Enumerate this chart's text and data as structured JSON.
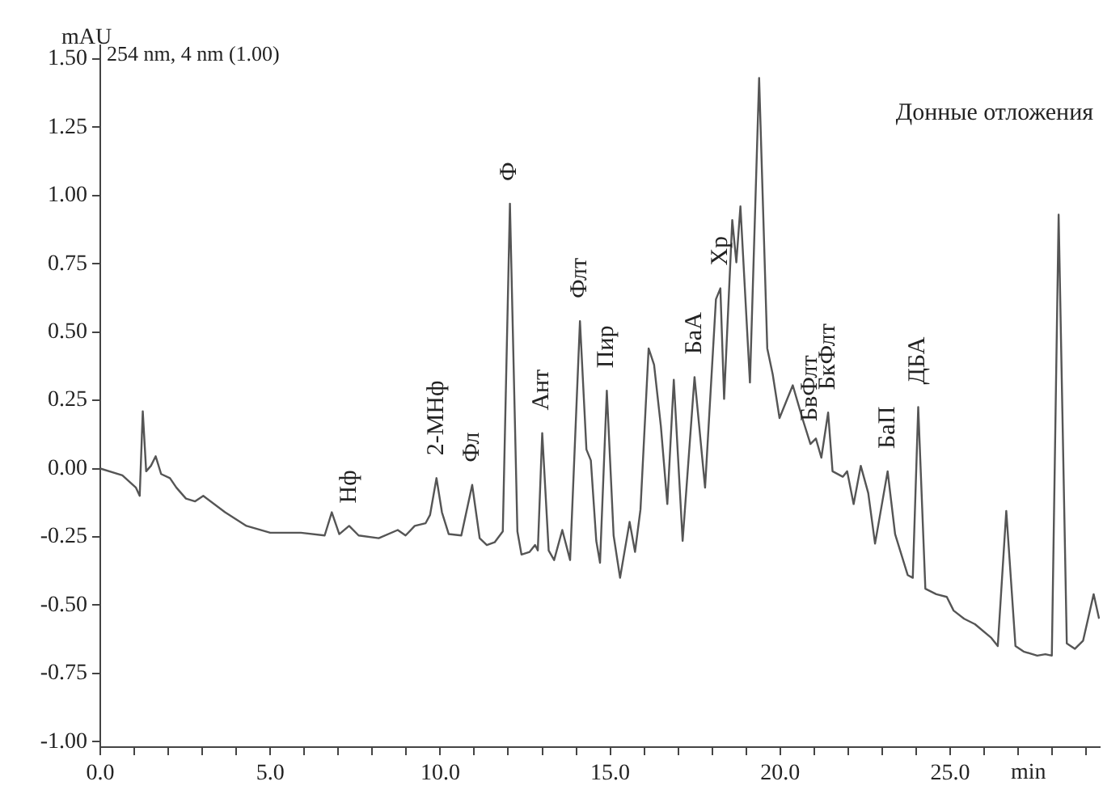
{
  "chart_data": {
    "type": "line",
    "xlabel": "min",
    "ylabel": "mAU",
    "grid": false,
    "legend": false,
    "marker": "none",
    "line_style": "solid",
    "xlim": [
      0,
      29.4
    ],
    "ylim": [
      -1.02,
      1.55
    ],
    "xticks": [
      {
        "value": 0,
        "label": "0.0"
      },
      {
        "value": 1,
        "label": null
      },
      {
        "value": 2,
        "label": null
      },
      {
        "value": 3,
        "label": null
      },
      {
        "value": 4,
        "label": null
      },
      {
        "value": 5,
        "label": "5.0"
      },
      {
        "value": 6,
        "label": null
      },
      {
        "value": 7,
        "label": null
      },
      {
        "value": 8,
        "label": null
      },
      {
        "value": 9,
        "label": null
      },
      {
        "value": 10,
        "label": "10.0"
      },
      {
        "value": 11,
        "label": null
      },
      {
        "value": 12,
        "label": null
      },
      {
        "value": 13,
        "label": null
      },
      {
        "value": 14,
        "label": null
      },
      {
        "value": 15,
        "label": "15.0"
      },
      {
        "value": 16,
        "label": null
      },
      {
        "value": 17,
        "label": null
      },
      {
        "value": 18,
        "label": null
      },
      {
        "value": 19,
        "label": null
      },
      {
        "value": 20,
        "label": "20.0"
      },
      {
        "value": 21,
        "label": null
      },
      {
        "value": 22,
        "label": null
      },
      {
        "value": 23,
        "label": null
      },
      {
        "value": 24,
        "label": null
      },
      {
        "value": 25,
        "label": "25.0"
      },
      {
        "value": 26,
        "label": null
      },
      {
        "value": 27,
        "label": null
      },
      {
        "value": 28,
        "label": null
      },
      {
        "value": 29,
        "label": null
      }
    ],
    "yticks": [
      {
        "value": -1,
        "label": "-1.00"
      },
      {
        "value": -0.75,
        "label": "-0.75"
      },
      {
        "value": -0.5,
        "label": "-0.50"
      },
      {
        "value": -0.25,
        "label": "-0.25"
      },
      {
        "value": 0,
        "label": "0.00"
      },
      {
        "value": 0.25,
        "label": "0.25"
      },
      {
        "value": 0.5,
        "label": "0.50"
      },
      {
        "value": 0.75,
        "label": "0.75"
      },
      {
        "value": 1,
        "label": "1.00"
      },
      {
        "value": 1.25,
        "label": "1.25"
      },
      {
        "value": 1.5,
        "label": "1.50"
      }
    ],
    "series": [
      {
        "color": "#555555",
        "x": [
          0,
          0.65,
          1.05,
          1.16,
          1.25,
          1.35,
          1.49,
          1.63,
          1.79,
          2.05,
          2.24,
          2.52,
          2.79,
          3.03,
          3.67,
          4.3,
          5.0,
          5.9,
          6.6,
          6.81,
          7.03,
          7.32,
          7.6,
          8.19,
          8.75,
          8.98,
          9.25,
          9.57,
          9.7,
          9.89,
          10.05,
          10.25,
          10.62,
          10.94,
          11.16,
          11.37,
          11.6,
          11.84,
          12.05,
          12.27,
          12.39,
          12.63,
          12.79,
          12.87,
          13.0,
          13.19,
          13.35,
          13.59,
          13.82,
          14.11,
          14.3,
          14.43,
          14.59,
          14.7,
          14.9,
          15.1,
          15.29,
          15.57,
          15.73,
          15.89,
          16.13,
          16.29,
          16.49,
          16.68,
          16.87,
          17.13,
          17.48,
          17.79,
          18.11,
          18.24,
          18.35,
          18.59,
          18.71,
          18.83,
          19.11,
          19.38,
          19.62,
          19.78,
          19.98,
          20.37,
          20.65,
          20.89,
          21.05,
          21.21,
          21.41,
          21.54,
          21.84,
          21.97,
          22.16,
          22.37,
          22.59,
          22.79,
          23.16,
          23.38,
          23.75,
          23.9,
          24.06,
          24.27,
          24.59,
          24.9,
          25.1,
          25.41,
          25.73,
          26.21,
          26.4,
          26.65,
          26.92,
          27.16,
          27.56,
          27.8,
          27.99,
          28.19,
          28.43,
          28.67,
          28.91,
          29.22,
          29.38
        ],
        "values": [
          0,
          -0.025,
          -0.07,
          -0.1,
          0.21,
          -0.01,
          0.01,
          0.045,
          -0.02,
          -0.035,
          -0.07,
          -0.11,
          -0.12,
          -0.1,
          -0.16,
          -0.21,
          -0.235,
          -0.235,
          -0.245,
          -0.16,
          -0.24,
          -0.21,
          -0.245,
          -0.255,
          -0.225,
          -0.245,
          -0.21,
          -0.2,
          -0.17,
          -0.035,
          -0.16,
          -0.24,
          -0.245,
          -0.06,
          -0.255,
          -0.28,
          -0.27,
          -0.23,
          0.97,
          -0.23,
          -0.315,
          -0.305,
          -0.28,
          -0.3,
          0.13,
          -0.3,
          -0.335,
          -0.225,
          -0.335,
          0.54,
          0.07,
          0.03,
          -0.265,
          -0.345,
          0.285,
          -0.245,
          -0.4,
          -0.195,
          -0.305,
          -0.15,
          0.44,
          0.38,
          0.155,
          -0.13,
          0.325,
          -0.265,
          0.335,
          -0.07,
          0.62,
          0.66,
          0.255,
          0.91,
          0.755,
          0.96,
          0.315,
          1.43,
          0.44,
          0.345,
          0.185,
          0.305,
          0.185,
          0.09,
          0.11,
          0.04,
          0.205,
          -0.01,
          -0.03,
          -0.01,
          -0.13,
          0.01,
          -0.09,
          -0.275,
          -0.01,
          -0.24,
          -0.39,
          -0.4,
          0.225,
          -0.44,
          -0.46,
          -0.47,
          -0.52,
          -0.55,
          -0.57,
          -0.62,
          -0.65,
          -0.155,
          -0.65,
          -0.67,
          -0.685,
          -0.68,
          -0.685,
          0.93,
          -0.64,
          -0.66,
          -0.63,
          -0.46,
          -0.55
        ]
      }
    ],
    "annotations": [
      "254 nm, 4 nm (1.00)",
      "Донные отложения",
      {
        "text": "Нф",
        "x": 7.32,
        "y": -0.21
      },
      {
        "text": "2-МНф",
        "x": 9.89,
        "y": -0.035
      },
      {
        "text": "Фл",
        "x": 10.94,
        "y": -0.06
      },
      {
        "text": "Ф",
        "x": 12.05,
        "y": 0.97
      },
      {
        "text": "Ант",
        "x": 13.0,
        "y": 0.13
      },
      {
        "text": "Флт",
        "x": 14.11,
        "y": 0.54
      },
      {
        "text": "Пир",
        "x": 14.9,
        "y": 0.285
      },
      {
        "text": "БаА",
        "x": 17.48,
        "y": 0.335
      },
      {
        "text": "Хр",
        "x": 18.24,
        "y": 0.66
      },
      {
        "text": "БвФлт",
        "x": 20.89,
        "y": 0.09
      },
      {
        "text": "БкФлт",
        "x": 21.41,
        "y": 0.205
      },
      {
        "text": "БаП",
        "x": 23.16,
        "y": -0.01
      },
      {
        "text": "ДБА",
        "x": 24.06,
        "y": 0.225
      }
    ]
  }
}
